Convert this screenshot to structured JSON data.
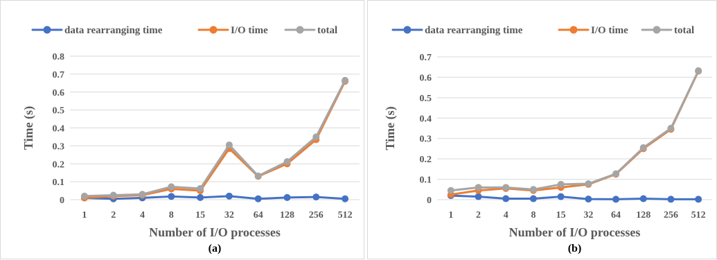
{
  "colors": {
    "data_rearranging": "#4472c4",
    "io_time": "#ed7d31",
    "total": "#a5a5a5",
    "grid": "#d9d9d9",
    "text": "#595959"
  },
  "chart_data": [
    {
      "type": "line",
      "caption": "(a)",
      "xlabel": "Number of I/O processes",
      "ylabel": "Time (s)",
      "categories": [
        "1",
        "2",
        "4",
        "8",
        "15",
        "32",
        "64",
        "128",
        "256",
        "512"
      ],
      "yticks": [
        "0",
        "0.1",
        "0.2",
        "0.3",
        "0.4",
        "0.5",
        "0.6",
        "0.7",
        "0.8"
      ],
      "ylim": [
        0,
        0.8
      ],
      "grid": true,
      "legend_position": "top",
      "series": [
        {
          "name": "data rearranging time",
          "color_key": "data_rearranging",
          "values": [
            0.01,
            0.005,
            0.01,
            0.018,
            0.012,
            0.02,
            0.005,
            0.012,
            0.015,
            0.005
          ]
        },
        {
          "name": "I/O time",
          "color_key": "io_time",
          "values": [
            0.01,
            0.02,
            0.025,
            0.06,
            0.05,
            0.285,
            0.13,
            0.2,
            0.335,
            0.66
          ]
        },
        {
          "name": "total",
          "color_key": "total",
          "values": [
            0.02,
            0.025,
            0.03,
            0.072,
            0.062,
            0.305,
            0.132,
            0.212,
            0.35,
            0.665
          ]
        }
      ]
    },
    {
      "type": "line",
      "caption": "(b)",
      "xlabel": "Number of I/O processes",
      "ylabel": "Time (s)",
      "categories": [
        "1",
        "2",
        "4",
        "8",
        "15",
        "32",
        "64",
        "128",
        "256",
        "512"
      ],
      "yticks": [
        "0",
        "0.1",
        "0.2",
        "0.3",
        "0.4",
        "0.5",
        "0.6",
        "0.7"
      ],
      "ylim": [
        0,
        0.7
      ],
      "grid": true,
      "legend_position": "top",
      "series": [
        {
          "name": "data rearranging time",
          "color_key": "data_rearranging",
          "values": [
            0.02,
            0.015,
            0.005,
            0.005,
            0.015,
            0.003,
            0.002,
            0.005,
            0.002,
            0.002
          ]
        },
        {
          "name": "I/O time",
          "color_key": "io_time",
          "values": [
            0.025,
            0.045,
            0.055,
            0.045,
            0.06,
            0.075,
            0.125,
            0.25,
            0.345,
            0.63
          ]
        },
        {
          "name": "total",
          "color_key": "total",
          "values": [
            0.045,
            0.06,
            0.06,
            0.05,
            0.075,
            0.078,
            0.127,
            0.255,
            0.35,
            0.632
          ]
        }
      ]
    }
  ]
}
